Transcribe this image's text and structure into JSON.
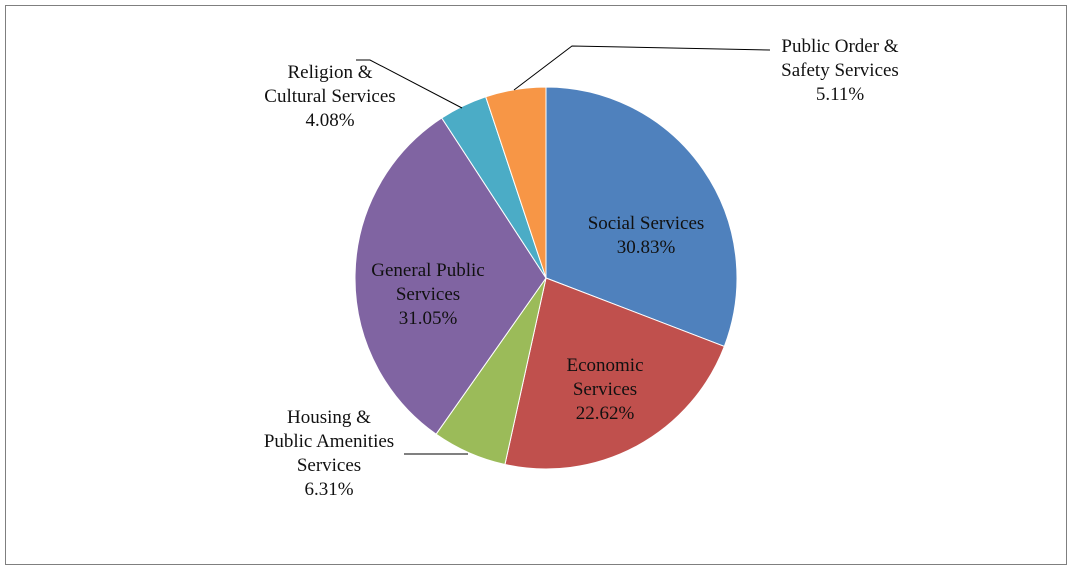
{
  "chart_data": {
    "type": "pie",
    "title": "",
    "legend": "none",
    "slices": [
      {
        "label_lines": [
          "Social Services"
        ],
        "pct_text": "30.83%",
        "value": 30.83,
        "color": "#4F81BD",
        "label_pos": "inside"
      },
      {
        "label_lines": [
          "Economic",
          "Services"
        ],
        "pct_text": "22.62%",
        "value": 22.62,
        "color": "#C0504D",
        "label_pos": "inside"
      },
      {
        "label_lines": [
          "Housing &",
          "Public Amenities",
          "Services"
        ],
        "pct_text": "6.31%",
        "value": 6.31,
        "color": "#9BBB59",
        "label_pos": "outside-left"
      },
      {
        "label_lines": [
          "General Public",
          "Services"
        ],
        "pct_text": "31.05%",
        "value": 31.05,
        "color": "#8064A2",
        "label_pos": "inside"
      },
      {
        "label_lines": [
          "Religion &",
          "Cultural Services"
        ],
        "pct_text": "4.08%",
        "value": 4.08,
        "color": "#4BACC6",
        "label_pos": "outside-top-left"
      },
      {
        "label_lines": [
          "Public Order &",
          "Safety Services"
        ],
        "pct_text": "5.11%",
        "value": 5.11,
        "color": "#F79646",
        "label_pos": "outside-top-right"
      }
    ]
  }
}
